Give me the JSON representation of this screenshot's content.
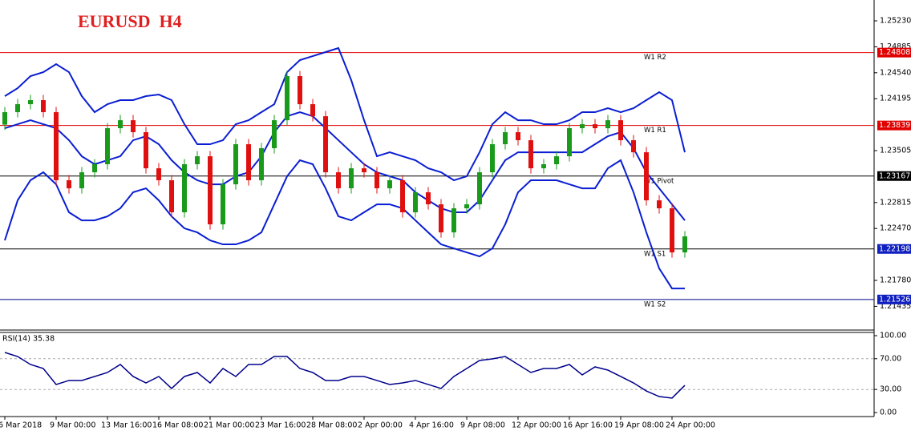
{
  "chart_data": [
    {
      "type": "candlestick",
      "title": "EURUSD  H4",
      "categories": [
        "6 Mar 2018",
        null,
        null,
        null,
        "9 Mar 00:00",
        null,
        null,
        null,
        "13 Mar 16:00",
        null,
        null,
        null,
        "16 Mar 08:00",
        null,
        null,
        null,
        "21 Mar 00:00",
        null,
        null,
        null,
        "23 Mar 16:00",
        null,
        null,
        null,
        "28 Mar 08:00",
        null,
        null,
        null,
        "2 Apr 00:00",
        null,
        null,
        null,
        "4 Apr 16:00",
        null,
        null,
        null,
        "9 Apr 08:00",
        null,
        null,
        null,
        "12 Apr 00:00",
        null,
        null,
        null,
        "16 Apr 16:00",
        null,
        null,
        null,
        "19 Apr 08:00",
        null,
        null,
        null,
        "24 Apr 00:00",
        null
      ],
      "open": [
        1.2385,
        1.24016,
        1.24122,
        1.24176,
        1.24016,
        1.23111,
        1.23004,
        1.23217,
        1.23324,
        1.23803,
        1.23909,
        1.2375,
        1.2327,
        1.23111,
        1.22685,
        1.23324,
        1.2343,
        1.22525,
        1.23057,
        1.2359,
        1.23111,
        1.23537,
        1.23909,
        1.24495,
        1.24122,
        1.23962,
        1.23217,
        1.23004,
        1.2327,
        1.23217,
        1.23004,
        1.23111,
        1.22685,
        1.22951,
        1.22791,
        1.22418,
        1.22738,
        1.22791,
        1.23217,
        1.2359,
        1.2375,
        1.23643,
        1.2327,
        1.23324,
        1.2343,
        1.23803,
        1.23856,
        1.23803,
        1.23909,
        1.23643,
        1.23483,
        1.22844,
        1.22738,
        1.22152
      ],
      "high": [
        1.24086,
        1.24192,
        1.24246,
        1.24246,
        1.24086,
        1.23181,
        1.23287,
        1.23394,
        1.23873,
        1.23979,
        1.23979,
        1.2382,
        1.2334,
        1.23181,
        1.23394,
        1.235,
        1.235,
        1.23127,
        1.2366,
        1.2366,
        1.23607,
        1.23979,
        1.24565,
        1.24565,
        1.24192,
        1.24032,
        1.23287,
        1.2334,
        1.2334,
        1.23287,
        1.23181,
        1.23181,
        1.23021,
        1.23021,
        1.22861,
        1.22808,
        1.22861,
        1.23287,
        1.2366,
        1.2382,
        1.2382,
        1.23713,
        1.23394,
        1.235,
        1.23873,
        1.23926,
        1.23926,
        1.23979,
        1.23979,
        1.23713,
        1.23553,
        1.22914,
        1.22808,
        1.22435
      ],
      "low": [
        1.2378,
        1.23946,
        1.24052,
        1.23946,
        1.23041,
        1.22934,
        1.22934,
        1.23147,
        1.23254,
        1.23733,
        1.2368,
        1.232,
        1.23041,
        1.22615,
        1.22615,
        1.23254,
        1.22455,
        1.22455,
        1.22987,
        1.23041,
        1.23041,
        1.23467,
        1.23839,
        1.24052,
        1.23892,
        1.23147,
        1.22934,
        1.22934,
        1.23147,
        1.22934,
        1.22934,
        1.22615,
        1.22615,
        1.22721,
        1.22348,
        1.22348,
        1.22668,
        1.22721,
        1.23147,
        1.2352,
        1.23573,
        1.232,
        1.232,
        1.23254,
        1.2336,
        1.23733,
        1.23733,
        1.23733,
        1.23573,
        1.23413,
        1.22774,
        1.22668,
        1.22082,
        1.22082
      ],
      "close": [
        1.24016,
        1.24122,
        1.24176,
        1.24016,
        1.23111,
        1.23004,
        1.23217,
        1.23324,
        1.23803,
        1.23909,
        1.2375,
        1.2327,
        1.23111,
        1.22685,
        1.23324,
        1.2343,
        1.22525,
        1.23057,
        1.2359,
        1.23111,
        1.23537,
        1.23909,
        1.24495,
        1.24122,
        1.23962,
        1.23217,
        1.23004,
        1.2327,
        1.23217,
        1.23004,
        1.23111,
        1.22685,
        1.22951,
        1.22791,
        1.22418,
        1.22738,
        1.22791,
        1.23217,
        1.2359,
        1.2375,
        1.23643,
        1.2327,
        1.23324,
        1.2343,
        1.23803,
        1.23856,
        1.23803,
        1.23909,
        1.23643,
        1.23483,
        1.22844,
        1.22738,
        1.22152,
        1.22365
      ],
      "up_color": "#1a9a1a",
      "down_color": "#e01010",
      "bollinger": {
        "color": "#0a1ed2",
        "upper": [
          1.24229,
          1.24335,
          1.24495,
          1.24548,
          1.24655,
          1.24548,
          1.24229,
          1.24016,
          1.24122,
          1.24176,
          1.24176,
          1.24229,
          1.2425,
          1.24176,
          1.23856,
          1.2359,
          1.2359,
          1.23643,
          1.23856,
          1.23909,
          1.24016,
          1.24122,
          1.24548,
          1.24708,
          1.24761,
          1.24815,
          1.24868,
          1.24442,
          1.23909,
          1.2343,
          1.23483,
          1.2343,
          1.23377,
          1.2327,
          1.23217,
          1.23111,
          1.23164,
          1.23483,
          1.23856,
          1.24016,
          1.23909,
          1.23909,
          1.23856,
          1.23856,
          1.23909,
          1.24016,
          1.24016,
          1.24069,
          1.24016,
          1.24069,
          1.24176,
          1.24282,
          1.24176,
          1.23483
        ],
        "middle": [
          1.23803,
          1.23856,
          1.23909,
          1.23856,
          1.23803,
          1.23643,
          1.2343,
          1.23324,
          1.23377,
          1.2343,
          1.23643,
          1.23696,
          1.2359,
          1.23377,
          1.23217,
          1.23111,
          1.23057,
          1.23057,
          1.23164,
          1.23217,
          1.2343,
          1.2375,
          1.23962,
          1.24016,
          1.23962,
          1.23803,
          1.23643,
          1.23483,
          1.23324,
          1.23217,
          1.23164,
          1.23111,
          1.22951,
          1.22844,
          1.22738,
          1.22685,
          1.22685,
          1.22844,
          1.23111,
          1.23377,
          1.23483,
          1.23483,
          1.23483,
          1.23483,
          1.23483,
          1.23483,
          1.2359,
          1.23696,
          1.2375,
          1.23537,
          1.23217,
          1.23004,
          1.22791,
          1.22578
        ],
        "lower": [
          1.22312,
          1.22844,
          1.23111,
          1.23217,
          1.23057,
          1.22685,
          1.22578,
          1.22578,
          1.22631,
          1.22738,
          1.22951,
          1.23004,
          1.22844,
          1.22631,
          1.22472,
          1.22418,
          1.22312,
          1.22259,
          1.22259,
          1.22312,
          1.22418,
          1.22791,
          1.23164,
          1.23377,
          1.23324,
          1.23004,
          1.22631,
          1.22578,
          1.22685,
          1.22791,
          1.22791,
          1.22738,
          1.22578,
          1.22418,
          1.22259,
          1.22205,
          1.22152,
          1.22099,
          1.22205,
          1.22525,
          1.22951,
          1.23111,
          1.23111,
          1.23111,
          1.23057,
          1.23004,
          1.23004,
          1.2327,
          1.23377,
          1.22951,
          1.22418,
          1.21939,
          1.21673,
          1.21673
        ]
      },
      "levels": [
        {
          "name": "W1 R2",
          "value": 1.24808,
          "color": "#e00000",
          "label_color": "#e00000",
          "box_color": "#e00000"
        },
        {
          "name": "W1 R1",
          "value": 1.23839,
          "color": "#e00000",
          "label_color": "#e00000",
          "box_color": "#e00000"
        },
        {
          "name": "W1 Pivot",
          "value": 1.23167,
          "color": "#000000",
          "label_color": "#000000",
          "box_color": "#000000"
        },
        {
          "name": "W1 S1",
          "value": 1.22198,
          "color": "#000000",
          "label_color": "#1020c0",
          "box_color": "#1020c0"
        },
        {
          "name": "W1 S2",
          "value": 1.21526,
          "color": "#00008b",
          "label_color": "#1020c0",
          "box_color": "#1020c0"
        }
      ],
      "ylim": [
        1.2112,
        1.25507
      ],
      "yticks": [
        {
          "value": 1.2523,
          "label": "1.25230"
        },
        1.24885,
        {
          "value": 1.2454,
          "label": "1.24540"
        },
        1.24195,
        1.23505,
        1.22815,
        {
          "value": 1.2247,
          "label": "1.22470"
        },
        {
          "value": 1.2178,
          "label": "1.21780"
        },
        1.21435
      ]
    },
    {
      "type": "line",
      "title": "RSI(14) 35.38",
      "color": "#00008b",
      "values": [
        78.1,
        72.9,
        62.5,
        57.3,
        36.5,
        41.7,
        41.7,
        46.9,
        52.1,
        62.5,
        46.9,
        38.5,
        46.9,
        31.3,
        46.9,
        52.1,
        38.5,
        57.3,
        46.9,
        62.5,
        62.5,
        72.9,
        72.9,
        57.3,
        52.1,
        41.7,
        41.7,
        46.9,
        46.9,
        41.7,
        36.5,
        38.5,
        41.7,
        36.5,
        31.3,
        46.9,
        57.3,
        67.7,
        69.8,
        72.9,
        62.5,
        52.1,
        57.3,
        57.3,
        62.5,
        49.0,
        59.4,
        55.2,
        46.9,
        38.5,
        28.1,
        20.8,
        18.8,
        35.38
      ],
      "ylim": [
        0,
        100
      ],
      "yticks": [
        {
          "value": 100,
          "label": "100.00"
        },
        {
          "value": 70,
          "label": "70.00"
        },
        {
          "value": 30,
          "label": "30.00"
        },
        {
          "value": 0,
          "label": "0.00"
        }
      ]
    }
  ]
}
